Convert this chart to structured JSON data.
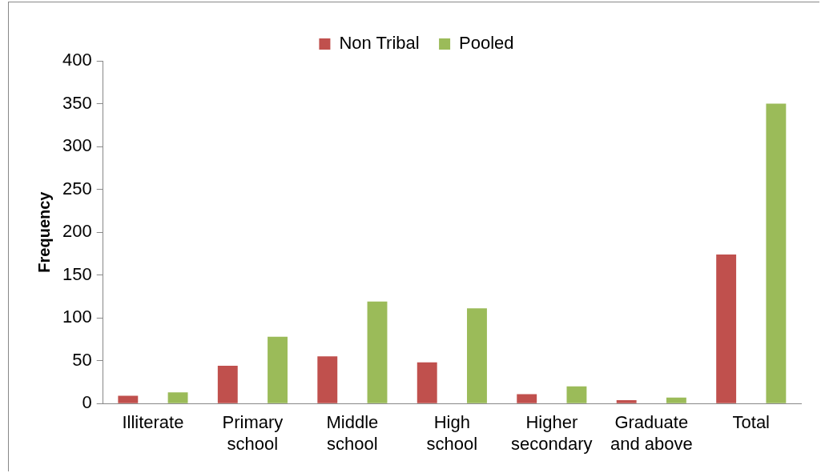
{
  "chart_data": {
    "type": "bar",
    "ylabel": "Frequency",
    "categories": [
      "Illiterate",
      "Primary school",
      "Middle school",
      "High school",
      "Higher secondary",
      "Graduate and above",
      "Total"
    ],
    "series": [
      {
        "name": "Non Tribal",
        "color": "#c0504d",
        "values": [
          9,
          44,
          55,
          48,
          11,
          4,
          174
        ]
      },
      {
        "name": "Pooled",
        "color": "#9bbb59",
        "values": [
          13,
          78,
          119,
          111,
          20,
          7,
          350
        ]
      }
    ],
    "ylim": [
      0,
      400
    ],
    "yticks": [
      0,
      50,
      100,
      150,
      200,
      250,
      300,
      350,
      400
    ],
    "grid": false,
    "legend": "top"
  }
}
